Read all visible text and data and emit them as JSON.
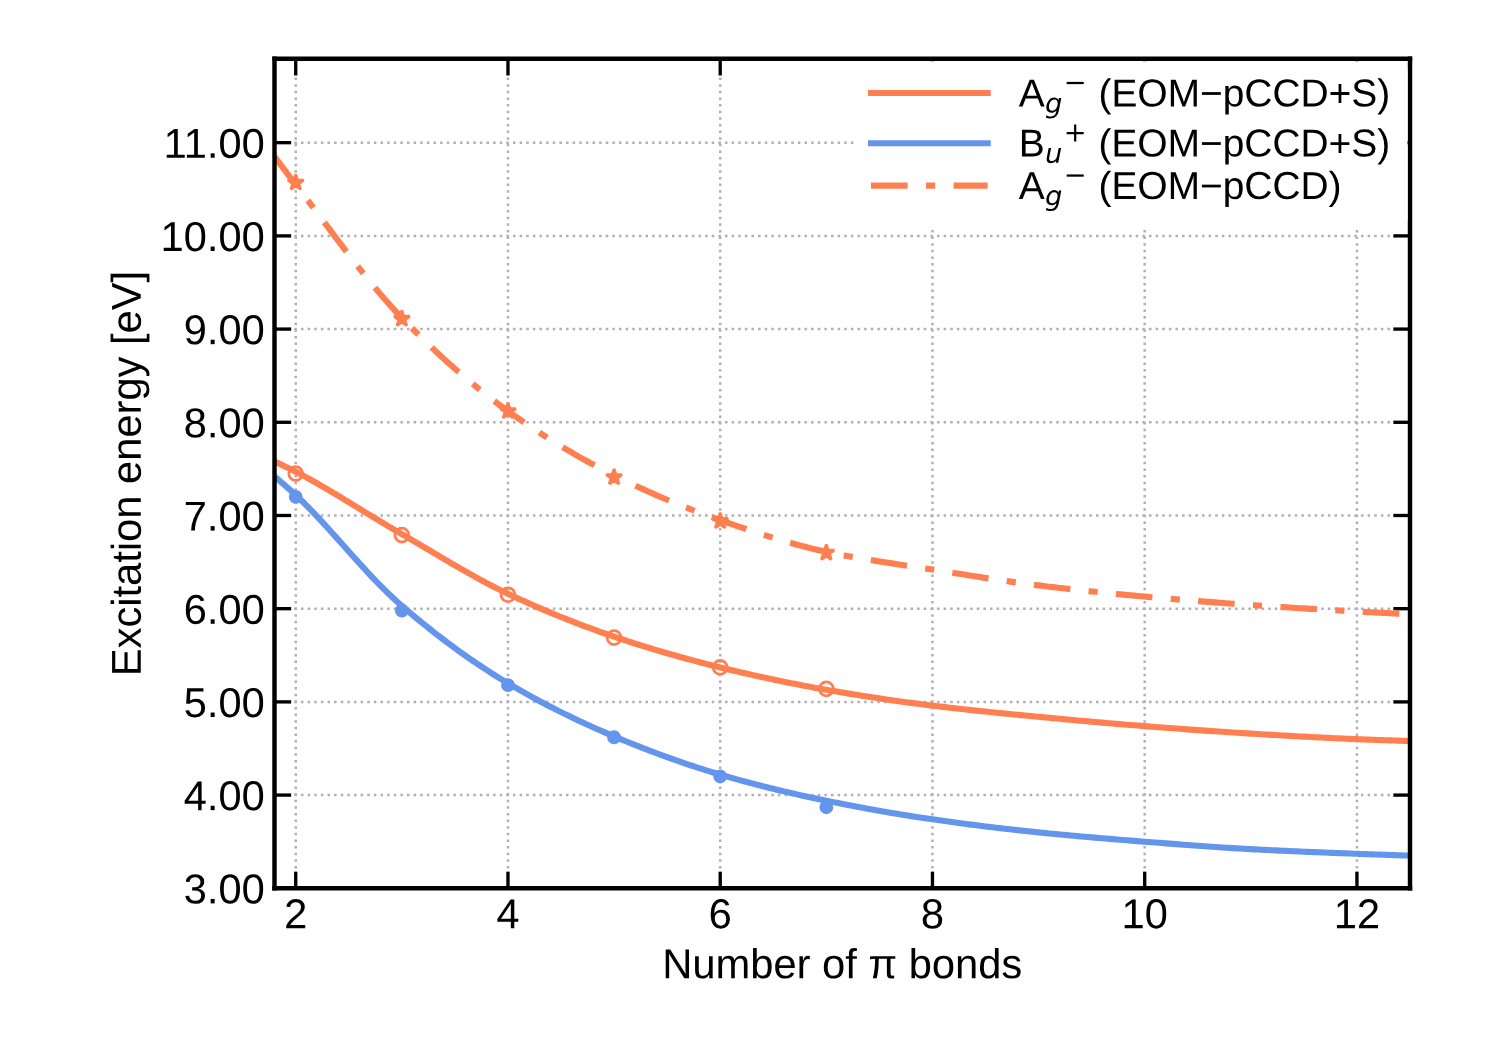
{
  "chart_data": {
    "type": "line",
    "xlabel": "Number of π bonds",
    "ylabel": "Excitation energy [eV]",
    "xlim": [
      1.8,
      12.5
    ],
    "ylim": [
      3.0,
      11.9
    ],
    "xticks": [
      2,
      4,
      6,
      8,
      10,
      12
    ],
    "yticks": [
      {
        "value": 3,
        "label": "3.00"
      },
      {
        "value": 4,
        "label": "4.00"
      },
      {
        "value": 5,
        "label": "5.00"
      },
      {
        "value": 6,
        "label": "6.00"
      },
      {
        "value": 7,
        "label": "7.00"
      },
      {
        "value": 8,
        "label": "8.00"
      },
      {
        "value": 9,
        "label": "9.00"
      },
      {
        "value": 10,
        "label": "10.00"
      },
      {
        "value": 11,
        "label": "11.00"
      }
    ],
    "grid": true,
    "legend": "top right",
    "series": [
      {
        "name": "A$_{g}$$^{−}$ (EOM−pCCD+S)",
        "line_style": "solid",
        "marker": "none",
        "color": "#ff7f50",
        "x": [
          1.8,
          2,
          3,
          4,
          5,
          6,
          7,
          8,
          9,
          10,
          11,
          12,
          12.5
        ],
        "values": [
          7.58,
          7.47,
          6.8,
          6.16,
          5.7,
          5.37,
          5.13,
          4.96,
          4.84,
          4.74,
          4.66,
          4.6,
          4.58
        ]
      },
      {
        "name": "B$_{u}$$^{+}$ (EOM−pCCD+S)",
        "line_style": "solid",
        "marker": "none",
        "color": "#6495ed",
        "x": [
          1.8,
          2,
          3,
          4,
          5,
          6,
          7,
          8,
          9,
          10,
          11,
          12,
          12.5
        ],
        "values": [
          7.42,
          7.22,
          6.03,
          5.2,
          4.63,
          4.22,
          3.94,
          3.74,
          3.6,
          3.5,
          3.42,
          3.37,
          3.35
        ]
      },
      {
        "name": "A$_{g}$$^{−}$ (EOM−pCCD)",
        "line_style": "dashdot",
        "marker": "none",
        "color": "#ff7f50",
        "x": [
          1.8,
          2,
          3,
          4,
          5,
          6,
          7,
          8,
          9,
          10,
          11,
          12,
          12.5
        ],
        "values": [
          10.85,
          10.55,
          9.12,
          8.12,
          7.43,
          6.95,
          6.61,
          6.42,
          6.25,
          6.13,
          6.04,
          5.97,
          5.94
        ]
      },
      {
        "type": "scatter",
        "marker": "circle_open",
        "color": "#ff7f50",
        "x": [
          2,
          3,
          4,
          5,
          6,
          7
        ],
        "values": [
          7.45,
          6.79,
          6.15,
          5.69,
          5.37,
          5.14
        ]
      },
      {
        "type": "scatter",
        "marker": "circle",
        "color": "#6495ed",
        "x": [
          2,
          3,
          4,
          5,
          6,
          7
        ],
        "values": [
          7.2,
          5.98,
          5.18,
          4.62,
          4.2,
          3.87
        ]
      },
      {
        "type": "scatter",
        "marker": "star",
        "color": "#ff7f50",
        "x": [
          2,
          3,
          4,
          5,
          6,
          7
        ],
        "values": [
          10.57,
          9.11,
          8.12,
          7.41,
          6.94,
          6.6
        ]
      }
    ]
  }
}
